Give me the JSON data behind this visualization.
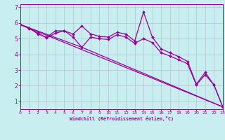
{
  "xlabel": "Windchill (Refroidissement éolien,°C)",
  "xlim": [
    0,
    23
  ],
  "ylim": [
    0.5,
    7.2
  ],
  "xticks": [
    0,
    1,
    2,
    3,
    4,
    5,
    6,
    7,
    8,
    9,
    10,
    11,
    12,
    13,
    14,
    15,
    16,
    17,
    18,
    19,
    20,
    21,
    22,
    23
  ],
  "yticks": [
    1,
    2,
    3,
    4,
    5,
    6,
    7
  ],
  "background_color": "#c8eef0",
  "line_color": "#990099",
  "grid_color": "#b0b8cc",
  "series": [
    {
      "name": "line1_wavy_upper",
      "x": [
        0,
        1,
        2,
        3,
        4,
        5,
        6,
        7,
        8,
        9,
        10,
        11,
        12,
        13,
        14,
        15,
        16,
        17,
        18,
        19,
        20,
        21,
        22,
        23
      ],
      "y": [
        5.9,
        5.7,
        5.3,
        5.1,
        5.5,
        5.5,
        5.3,
        5.8,
        5.3,
        5.15,
        5.1,
        5.4,
        5.3,
        4.85,
        6.7,
        5.1,
        4.35,
        4.1,
        3.85,
        3.55,
        2.1,
        2.85,
        2.05,
        0.65
      ],
      "marker": "D",
      "markersize": 2.0,
      "lw": 0.9
    },
    {
      "name": "line2_wavy_lower",
      "x": [
        0,
        1,
        2,
        3,
        4,
        5,
        6,
        7,
        8,
        9,
        10,
        11,
        12,
        13,
        14,
        15,
        16,
        17,
        18,
        19,
        20,
        21,
        22,
        23
      ],
      "y": [
        5.9,
        5.65,
        5.35,
        5.05,
        5.35,
        5.5,
        5.1,
        4.45,
        5.1,
        5.0,
        4.95,
        5.25,
        5.1,
        4.7,
        5.0,
        4.75,
        4.1,
        3.9,
        3.65,
        3.4,
        2.05,
        2.7,
        2.05,
        0.65
      ],
      "marker": "D",
      "markersize": 2.0,
      "lw": 0.9
    },
    {
      "name": "straight_line_full",
      "x": [
        0,
        23
      ],
      "y": [
        5.9,
        0.65
      ],
      "marker": null,
      "markersize": 0,
      "lw": 0.9
    },
    {
      "name": "straight_line_kinked",
      "x": [
        0,
        7,
        23
      ],
      "y": [
        5.9,
        4.45,
        0.65
      ],
      "marker": null,
      "markersize": 0,
      "lw": 0.9
    }
  ]
}
